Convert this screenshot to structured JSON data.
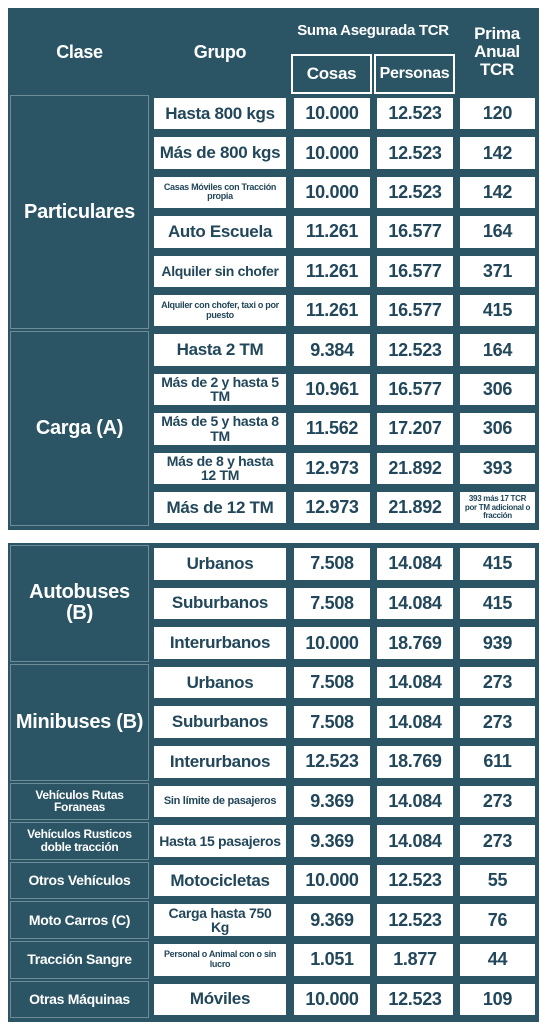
{
  "header": {
    "clase": "Clase",
    "grupo": "Grupo",
    "suma": "Suma Asegurada TCR",
    "cosas": "Cosas",
    "personas": "Personas",
    "prima": "Prima Anual TCR"
  },
  "tables": [
    {
      "groups": [
        {
          "clase": "Particulares",
          "rows": [
            {
              "grupo": "Hasta 800 kgs",
              "cosas": "10.000",
              "personas": "12.523",
              "prima": "120"
            },
            {
              "grupo": "Más de 800 kgs",
              "cosas": "10.000",
              "personas": "12.523",
              "prima": "142"
            },
            {
              "grupo": "Casas Móviles con Tracción propia",
              "cosas": "10.000",
              "personas": "12.523",
              "prima": "142"
            },
            {
              "grupo": "Auto Escuela",
              "cosas": "11.261",
              "personas": "16.577",
              "prima": "164"
            },
            {
              "grupo": "Alquiler sin chofer",
              "cosas": "11.261",
              "personas": "16.577",
              "prima": "371"
            },
            {
              "grupo": "Alquiler con chofer, taxi o por puesto",
              "cosas": "11.261",
              "personas": "16.577",
              "prima": "415"
            }
          ]
        },
        {
          "clase": "Carga (A)",
          "rows": [
            {
              "grupo": "Hasta 2 TM",
              "cosas": "9.384",
              "personas": "12.523",
              "prima": "164"
            },
            {
              "grupo": "Más de 2 y hasta 5 TM",
              "cosas": "10.961",
              "personas": "16.577",
              "prima": "306"
            },
            {
              "grupo": "Más de 5 y hasta 8 TM",
              "cosas": "11.562",
              "personas": "17.207",
              "prima": "306"
            },
            {
              "grupo": "Más de 8 y hasta 12 TM",
              "cosas": "12.973",
              "personas": "21.892",
              "prima": "393"
            },
            {
              "grupo": "Más de 12 TM",
              "cosas": "12.973",
              "personas": "21.892",
              "prima": "393 más 17 TCR por TM adicional o fracción"
            }
          ]
        }
      ]
    },
    {
      "groups": [
        {
          "clase": "Autobuses (B)",
          "rows": [
            {
              "grupo": "Urbanos",
              "cosas": "7.508",
              "personas": "14.084",
              "prima": "415"
            },
            {
              "grupo": "Suburbanos",
              "cosas": "7.508",
              "personas": "14.084",
              "prima": "415"
            },
            {
              "grupo": "Interurbanos",
              "cosas": "10.000",
              "personas": "18.769",
              "prima": "939"
            }
          ]
        },
        {
          "clase": "Minibuses (B)",
          "rows": [
            {
              "grupo": "Urbanos",
              "cosas": "7.508",
              "personas": "14.084",
              "prima": "273"
            },
            {
              "grupo": "Suburbanos",
              "cosas": "7.508",
              "personas": "14.084",
              "prima": "273"
            },
            {
              "grupo": "Interurbanos",
              "cosas": "12.523",
              "personas": "18.769",
              "prima": "611"
            }
          ]
        },
        {
          "clase": "Vehículos Rutas Foraneas",
          "rows": [
            {
              "grupo": "Sin límite de pasajeros",
              "cosas": "9.369",
              "personas": "14.084",
              "prima": "273"
            }
          ]
        },
        {
          "clase": "Vehículos Rusticos doble tracción",
          "rows": [
            {
              "grupo": "Hasta 15 pasajeros",
              "cosas": "9.369",
              "personas": "14.084",
              "prima": "273"
            }
          ]
        },
        {
          "clase": "Otros Vehículos",
          "rows": [
            {
              "grupo": "Motocicletas",
              "cosas": "10.000",
              "personas": "12.523",
              "prima": "55"
            }
          ]
        },
        {
          "clase": "Moto Carros (C)",
          "rows": [
            {
              "grupo": "Carga hasta 750 Kg",
              "cosas": "9.369",
              "personas": "12.523",
              "prima": "76"
            }
          ]
        },
        {
          "clase": "Tracción Sangre",
          "rows": [
            {
              "grupo": "Personal o Animal con o sin lucro",
              "cosas": "1.051",
              "personas": "1.877",
              "prima": "44"
            }
          ]
        },
        {
          "clase": "Otras Máquinas",
          "rows": [
            {
              "grupo": "Móviles",
              "cosas": "10.000",
              "personas": "12.523",
              "prima": "109"
            }
          ]
        }
      ]
    }
  ]
}
